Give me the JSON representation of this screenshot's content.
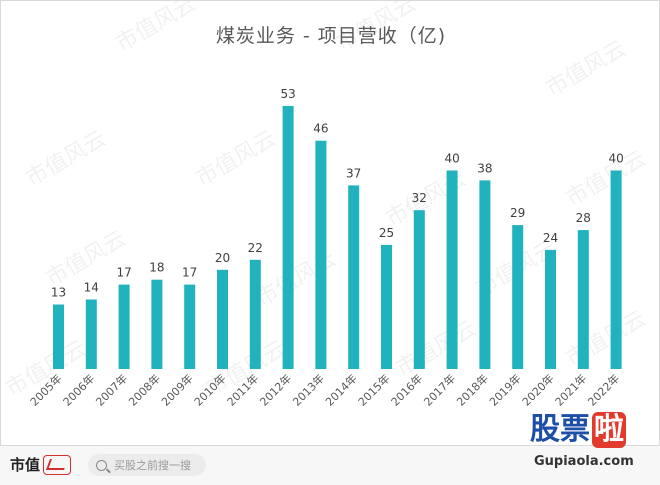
{
  "chart_data": {
    "type": "bar",
    "title": "煤炭业务 - 项目营收（亿)",
    "categories": [
      "2005年",
      "2006年",
      "2007年",
      "2008年",
      "2009年",
      "2010年",
      "2011年",
      "2012年",
      "2013年",
      "2014年",
      "2015年",
      "2016年",
      "2017年",
      "2018年",
      "2019年",
      "2020年",
      "2021年",
      "2022年"
    ],
    "values": [
      13,
      14,
      17,
      18,
      17,
      20,
      22,
      53,
      46,
      37,
      25,
      32,
      40,
      38,
      29,
      24,
      28,
      40
    ],
    "xlabel": "",
    "ylabel": "",
    "ylim": [
      0,
      53
    ],
    "grid": false,
    "legend": "none",
    "bar_color": "#20b2bd",
    "label_color": "#404040",
    "tick_color": "#595959"
  },
  "watermark": {
    "text": "市值风云"
  },
  "footer": {
    "brand_text": "市值",
    "brand_logo_icon": "fengyun-logo-icon",
    "search_placeholder": "买股之前搜一搜",
    "search_icon": "search-icon"
  },
  "site_logo": {
    "chars": [
      "股",
      "票",
      "啦"
    ],
    "url": "Gupiaola.com",
    "colors": {
      "primary": "#1e4fa8",
      "accent": "#e23b2e"
    }
  }
}
